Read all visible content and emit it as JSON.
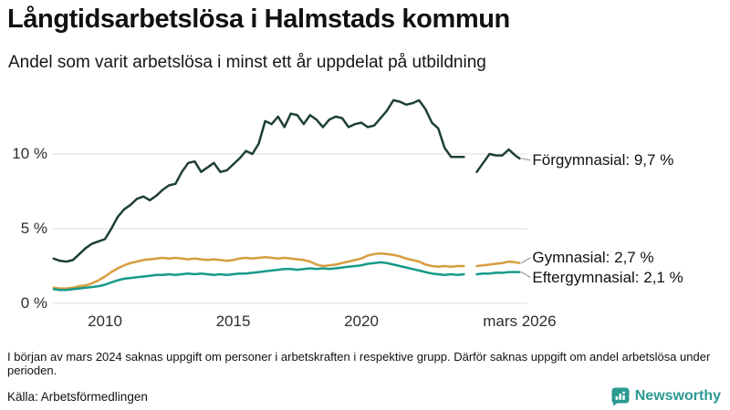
{
  "header": {
    "title": "Långtidsarbetslösa i Halmstads kommun",
    "subtitle": "Andel som varit arbetslösa i minst ett år uppdelat på utbildning"
  },
  "chart_data": {
    "type": "line",
    "title": "Långtidsarbetslösa i Halmstads kommun",
    "subtitle": "Andel som varit arbetslösa i minst ett år uppdelat på utbildning",
    "unit": "%",
    "grid": "horizontal",
    "x_range": [
      2008,
      2026.25
    ],
    "ylim": [
      0,
      14
    ],
    "y_axis": {
      "ticks": [
        {
          "label": "0 %",
          "value": 0
        },
        {
          "label": "5 %",
          "value": 5
        },
        {
          "label": "10 %",
          "value": 10
        }
      ]
    },
    "x_axis": {
      "ticks": [
        {
          "label": "2010",
          "year": 2010
        },
        {
          "label": "2015",
          "year": 2015
        },
        {
          "label": "2020",
          "year": 2020
        },
        {
          "label": "mars 2026",
          "year": 2026.17
        }
      ]
    },
    "data_gap": {
      "from": 2024.0,
      "to": 2024.5,
      "reason": "uppgift saknas i början av mars 2024"
    },
    "series": [
      {
        "id": "forgymnasial",
        "name": "Förgymnasial",
        "label": "Förgymnasial: 9,7 %",
        "last_value": "9,7 %",
        "color": "#1e3f37",
        "points": [
          [
            2008,
            3.0
          ],
          [
            2008.25,
            2.85
          ],
          [
            2008.5,
            2.8
          ],
          [
            2008.75,
            2.9
          ],
          [
            2009,
            3.3
          ],
          [
            2009.25,
            3.7
          ],
          [
            2009.5,
            4.0
          ],
          [
            2009.75,
            4.15
          ],
          [
            2010,
            4.3
          ],
          [
            2010.25,
            5.0
          ],
          [
            2010.5,
            5.8
          ],
          [
            2010.75,
            6.3
          ],
          [
            2011,
            6.6
          ],
          [
            2011.25,
            7.0
          ],
          [
            2011.5,
            7.15
          ],
          [
            2011.75,
            6.9
          ],
          [
            2012,
            7.2
          ],
          [
            2012.25,
            7.6
          ],
          [
            2012.5,
            7.9
          ],
          [
            2012.75,
            8.0
          ],
          [
            2013,
            8.8
          ],
          [
            2013.25,
            9.4
          ],
          [
            2013.5,
            9.5
          ],
          [
            2013.75,
            8.8
          ],
          [
            2014,
            9.1
          ],
          [
            2014.25,
            9.4
          ],
          [
            2014.5,
            8.8
          ],
          [
            2014.75,
            8.9
          ],
          [
            2015,
            9.3
          ],
          [
            2015.25,
            9.7
          ],
          [
            2015.5,
            10.2
          ],
          [
            2015.75,
            10.0
          ],
          [
            2016,
            10.7
          ],
          [
            2016.25,
            12.2
          ],
          [
            2016.5,
            12.0
          ],
          [
            2016.75,
            12.5
          ],
          [
            2017,
            11.8
          ],
          [
            2017.25,
            12.7
          ],
          [
            2017.5,
            12.6
          ],
          [
            2017.75,
            12.0
          ],
          [
            2018,
            12.6
          ],
          [
            2018.25,
            12.3
          ],
          [
            2018.5,
            11.8
          ],
          [
            2018.75,
            12.3
          ],
          [
            2019,
            12.5
          ],
          [
            2019.25,
            12.4
          ],
          [
            2019.5,
            11.8
          ],
          [
            2019.75,
            12.0
          ],
          [
            2020,
            12.1
          ],
          [
            2020.25,
            11.8
          ],
          [
            2020.5,
            11.9
          ],
          [
            2020.75,
            12.4
          ],
          [
            2021,
            12.9
          ],
          [
            2021.25,
            13.6
          ],
          [
            2021.5,
            13.5
          ],
          [
            2021.75,
            13.3
          ],
          [
            2022,
            13.4
          ],
          [
            2022.25,
            13.6
          ],
          [
            2022.5,
            13.0
          ],
          [
            2022.75,
            12.1
          ],
          [
            2023,
            11.7
          ],
          [
            2023.25,
            10.4
          ],
          [
            2023.5,
            9.8
          ],
          [
            2023.75,
            9.8
          ],
          [
            2024,
            9.8
          ],
          [
            2024.25,
            null
          ],
          [
            2024.5,
            8.8
          ],
          [
            2024.75,
            9.4
          ],
          [
            2025,
            10.0
          ],
          [
            2025.25,
            9.9
          ],
          [
            2025.5,
            9.9
          ],
          [
            2025.75,
            10.3
          ],
          [
            2026,
            9.9
          ],
          [
            2026.17,
            9.7
          ]
        ]
      },
      {
        "id": "gymnasial",
        "name": "Gymnasial",
        "label": "Gymnasial: 2,7 %",
        "last_value": "2,7 %",
        "color": "#d79d3f",
        "points": [
          [
            2008,
            1.05
          ],
          [
            2008.25,
            1.0
          ],
          [
            2008.5,
            1.0
          ],
          [
            2008.75,
            1.05
          ],
          [
            2009,
            1.15
          ],
          [
            2009.25,
            1.2
          ],
          [
            2009.5,
            1.35
          ],
          [
            2009.75,
            1.55
          ],
          [
            2010,
            1.8
          ],
          [
            2010.25,
            2.1
          ],
          [
            2010.5,
            2.35
          ],
          [
            2010.75,
            2.55
          ],
          [
            2011,
            2.7
          ],
          [
            2011.25,
            2.8
          ],
          [
            2011.5,
            2.9
          ],
          [
            2011.75,
            2.95
          ],
          [
            2012,
            3.0
          ],
          [
            2012.25,
            3.05
          ],
          [
            2012.5,
            3.0
          ],
          [
            2012.75,
            3.05
          ],
          [
            2013,
            3.0
          ],
          [
            2013.25,
            2.95
          ],
          [
            2013.5,
            3.0
          ],
          [
            2013.75,
            2.95
          ],
          [
            2014,
            2.9
          ],
          [
            2014.25,
            2.95
          ],
          [
            2014.5,
            2.9
          ],
          [
            2014.75,
            2.85
          ],
          [
            2015,
            2.9
          ],
          [
            2015.25,
            3.0
          ],
          [
            2015.5,
            3.05
          ],
          [
            2015.75,
            3.0
          ],
          [
            2016,
            3.05
          ],
          [
            2016.25,
            3.1
          ],
          [
            2016.5,
            3.05
          ],
          [
            2016.75,
            3.0
          ],
          [
            2017,
            3.05
          ],
          [
            2017.25,
            3.0
          ],
          [
            2017.5,
            2.95
          ],
          [
            2017.75,
            2.9
          ],
          [
            2018,
            2.8
          ],
          [
            2018.25,
            2.6
          ],
          [
            2018.5,
            2.5
          ],
          [
            2018.75,
            2.55
          ],
          [
            2019,
            2.6
          ],
          [
            2019.25,
            2.7
          ],
          [
            2019.5,
            2.8
          ],
          [
            2019.75,
            2.9
          ],
          [
            2020,
            3.0
          ],
          [
            2020.25,
            3.2
          ],
          [
            2020.5,
            3.3
          ],
          [
            2020.75,
            3.35
          ],
          [
            2021,
            3.3
          ],
          [
            2021.25,
            3.25
          ],
          [
            2021.5,
            3.15
          ],
          [
            2021.75,
            3.0
          ],
          [
            2022,
            2.9
          ],
          [
            2022.25,
            2.8
          ],
          [
            2022.5,
            2.6
          ],
          [
            2022.75,
            2.5
          ],
          [
            2023,
            2.45
          ],
          [
            2023.25,
            2.5
          ],
          [
            2023.5,
            2.45
          ],
          [
            2023.75,
            2.5
          ],
          [
            2024,
            2.5
          ],
          [
            2024.25,
            null
          ],
          [
            2024.5,
            2.5
          ],
          [
            2024.75,
            2.55
          ],
          [
            2025,
            2.6
          ],
          [
            2025.25,
            2.65
          ],
          [
            2025.5,
            2.7
          ],
          [
            2025.75,
            2.8
          ],
          [
            2026,
            2.75
          ],
          [
            2026.17,
            2.7
          ]
        ]
      },
      {
        "id": "eftergymnasial",
        "name": "Eftergymnasial",
        "label": "Eftergymnasial: 2,1 %",
        "last_value": "2,1 %",
        "color": "#179a88",
        "points": [
          [
            2008,
            0.95
          ],
          [
            2008.25,
            0.9
          ],
          [
            2008.5,
            0.9
          ],
          [
            2008.75,
            0.95
          ],
          [
            2009,
            1.0
          ],
          [
            2009.25,
            1.05
          ],
          [
            2009.5,
            1.1
          ],
          [
            2009.75,
            1.15
          ],
          [
            2010,
            1.25
          ],
          [
            2010.25,
            1.4
          ],
          [
            2010.5,
            1.55
          ],
          [
            2010.75,
            1.65
          ],
          [
            2011,
            1.7
          ],
          [
            2011.25,
            1.75
          ],
          [
            2011.5,
            1.8
          ],
          [
            2011.75,
            1.85
          ],
          [
            2012,
            1.9
          ],
          [
            2012.25,
            1.9
          ],
          [
            2012.5,
            1.95
          ],
          [
            2012.75,
            1.9
          ],
          [
            2013,
            1.95
          ],
          [
            2013.25,
            2.0
          ],
          [
            2013.5,
            1.95
          ],
          [
            2013.75,
            2.0
          ],
          [
            2014,
            1.95
          ],
          [
            2014.25,
            1.9
          ],
          [
            2014.5,
            1.95
          ],
          [
            2014.75,
            1.9
          ],
          [
            2015,
            1.95
          ],
          [
            2015.25,
            2.0
          ],
          [
            2015.5,
            2.0
          ],
          [
            2015.75,
            2.05
          ],
          [
            2016,
            2.1
          ],
          [
            2016.25,
            2.15
          ],
          [
            2016.5,
            2.2
          ],
          [
            2016.75,
            2.25
          ],
          [
            2017,
            2.3
          ],
          [
            2017.25,
            2.3
          ],
          [
            2017.5,
            2.25
          ],
          [
            2017.75,
            2.3
          ],
          [
            2018,
            2.35
          ],
          [
            2018.25,
            2.3
          ],
          [
            2018.5,
            2.35
          ],
          [
            2018.75,
            2.3
          ],
          [
            2019,
            2.35
          ],
          [
            2019.25,
            2.4
          ],
          [
            2019.5,
            2.45
          ],
          [
            2019.75,
            2.5
          ],
          [
            2020,
            2.55
          ],
          [
            2020.25,
            2.65
          ],
          [
            2020.5,
            2.7
          ],
          [
            2020.75,
            2.75
          ],
          [
            2021,
            2.7
          ],
          [
            2021.25,
            2.6
          ],
          [
            2021.5,
            2.5
          ],
          [
            2021.75,
            2.4
          ],
          [
            2022,
            2.3
          ],
          [
            2022.25,
            2.2
          ],
          [
            2022.5,
            2.1
          ],
          [
            2022.75,
            2.0
          ],
          [
            2023,
            1.95
          ],
          [
            2023.25,
            1.9
          ],
          [
            2023.5,
            1.95
          ],
          [
            2023.75,
            1.9
          ],
          [
            2024,
            1.95
          ],
          [
            2024.25,
            null
          ],
          [
            2024.5,
            1.95
          ],
          [
            2024.75,
            2.0
          ],
          [
            2025,
            2.0
          ],
          [
            2025.25,
            2.05
          ],
          [
            2025.5,
            2.05
          ],
          [
            2025.75,
            2.1
          ],
          [
            2026,
            2.1
          ],
          [
            2026.17,
            2.1
          ]
        ]
      }
    ]
  },
  "footer": {
    "note": "I början av mars 2024 saknas uppgift om personer i arbetskraften i respektive grupp. Därför saknas uppgift om andel arbetslösa under perioden.",
    "source": "Källa: Arbetsförmedlingen",
    "brand": "Newsworthy"
  },
  "colors": {
    "forgymnasial": "#1e3f37",
    "gymnasial": "#d79d3f",
    "eftergymnasial": "#179a88",
    "gridline": "#e3e3e3",
    "brand_teal": "#2b9a93"
  }
}
